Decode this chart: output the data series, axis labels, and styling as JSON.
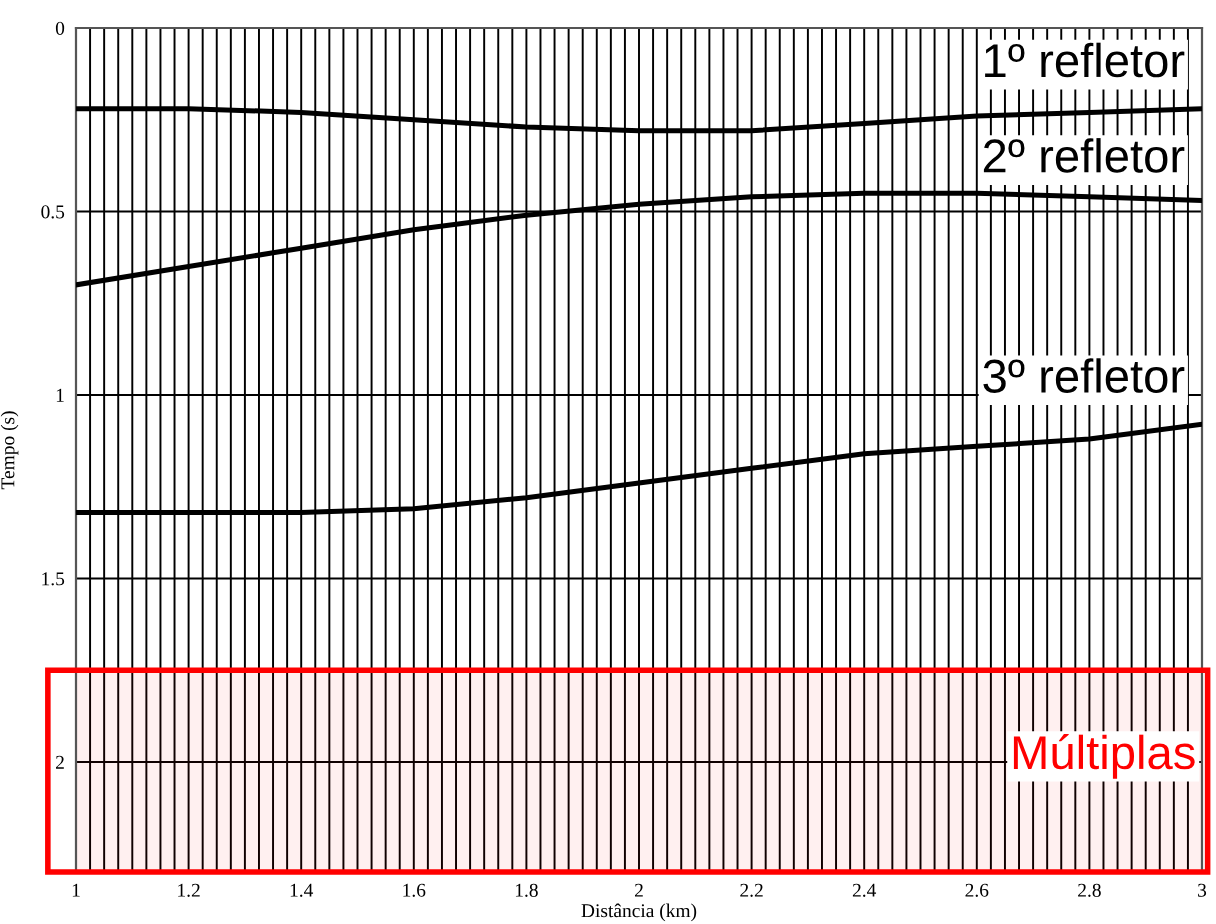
{
  "chart_data": {
    "type": "line",
    "xlabel": "Distância (km)",
    "ylabel": "Tempo (s)",
    "series": [
      {
        "color": "#000000",
        "x": [
          1.0,
          1.2,
          1.4,
          1.6,
          1.8,
          2.0,
          2.2,
          2.4,
          2.6,
          2.8,
          3.0
        ],
        "values": [
          0.22,
          0.22,
          0.23,
          0.25,
          0.27,
          0.28,
          0.28,
          0.26,
          0.24,
          0.23,
          0.22
        ]
      },
      {
        "color": "#000000",
        "x": [
          1.0,
          1.2,
          1.4,
          1.6,
          1.8,
          2.0,
          2.2,
          2.4,
          2.6,
          2.8,
          3.0
        ],
        "values": [
          0.7,
          0.65,
          0.6,
          0.55,
          0.51,
          0.48,
          0.46,
          0.45,
          0.45,
          0.46,
          0.47
        ]
      },
      {
        "color": "#000000",
        "x": [
          1.0,
          1.2,
          1.4,
          1.6,
          1.8,
          2.0,
          2.2,
          2.4,
          2.6,
          2.8,
          3.0
        ],
        "values": [
          1.32,
          1.32,
          1.32,
          1.31,
          1.28,
          1.24,
          1.2,
          1.16,
          1.14,
          1.12,
          1.08
        ]
      }
    ],
    "annotations": [
      "1º refletor",
      "2º refletor",
      "3º refletor"
    ],
    "bands": [
      {
        "axis": "y",
        "from": 1.75,
        "to": 2.3,
        "label": "Múltiplas",
        "color": "#ff0000"
      }
    ],
    "xlim": [
      1,
      3
    ],
    "ylim": [
      2.3,
      0
    ],
    "xticks": [
      1,
      {
        "value": 1.025,
        "label": null
      },
      {
        "value": 1.05,
        "label": null
      },
      {
        "value": 1.075,
        "label": null
      },
      {
        "value": 1.1,
        "label": null
      },
      {
        "value": 1.125,
        "label": null
      },
      {
        "value": 1.15,
        "label": null
      },
      {
        "value": 1.175,
        "label": null
      },
      1.2,
      {
        "value": 1.225,
        "label": null
      },
      {
        "value": 1.25,
        "label": null
      },
      {
        "value": 1.275,
        "label": null
      },
      {
        "value": 1.3,
        "label": null
      },
      {
        "value": 1.325,
        "label": null
      },
      {
        "value": 1.35,
        "label": null
      },
      {
        "value": 1.375,
        "label": null
      },
      1.4,
      {
        "value": 1.425,
        "label": null
      },
      {
        "value": 1.45,
        "label": null
      },
      {
        "value": 1.475,
        "label": null
      },
      {
        "value": 1.5,
        "label": null
      },
      {
        "value": 1.525,
        "label": null
      },
      {
        "value": 1.55,
        "label": null
      },
      {
        "value": 1.575,
        "label": null
      },
      1.6,
      {
        "value": 1.625,
        "label": null
      },
      {
        "value": 1.65,
        "label": null
      },
      {
        "value": 1.675,
        "label": null
      },
      {
        "value": 1.7,
        "label": null
      },
      {
        "value": 1.725,
        "label": null
      },
      {
        "value": 1.75,
        "label": null
      },
      {
        "value": 1.775,
        "label": null
      },
      1.8,
      {
        "value": 1.825,
        "label": null
      },
      {
        "value": 1.85,
        "label": null
      },
      {
        "value": 1.875,
        "label": null
      },
      {
        "value": 1.9,
        "label": null
      },
      {
        "value": 1.925,
        "label": null
      },
      {
        "value": 1.95,
        "label": null
      },
      {
        "value": 1.975,
        "label": null
      },
      2,
      {
        "value": 2.025,
        "label": null
      },
      {
        "value": 2.05,
        "label": null
      },
      {
        "value": 2.075,
        "label": null
      },
      {
        "value": 2.1,
        "label": null
      },
      {
        "value": 2.125,
        "label": null
      },
      {
        "value": 2.15,
        "label": null
      },
      {
        "value": 2.175,
        "label": null
      },
      2.2,
      {
        "value": 2.225,
        "label": null
      },
      {
        "value": 2.25,
        "label": null
      },
      {
        "value": 2.275,
        "label": null
      },
      {
        "value": 2.3,
        "label": null
      },
      {
        "value": 2.325,
        "label": null
      },
      {
        "value": 2.35,
        "label": null
      },
      {
        "value": 2.375,
        "label": null
      },
      2.4,
      {
        "value": 2.425,
        "label": null
      },
      {
        "value": 2.45,
        "label": null
      },
      {
        "value": 2.475,
        "label": null
      },
      {
        "value": 2.5,
        "label": null
      },
      {
        "value": 2.525,
        "label": null
      },
      {
        "value": 2.55,
        "label": null
      },
      {
        "value": 2.575,
        "label": null
      },
      2.6,
      {
        "value": 2.625,
        "label": null
      },
      {
        "value": 2.65,
        "label": null
      },
      {
        "value": 2.675,
        "label": null
      },
      {
        "value": 2.7,
        "label": null
      },
      {
        "value": 2.725,
        "label": null
      },
      {
        "value": 2.75,
        "label": null
      },
      {
        "value": 2.775,
        "label": null
      },
      2.8,
      {
        "value": 2.825,
        "label": null
      },
      {
        "value": 2.85,
        "label": null
      },
      {
        "value": 2.875,
        "label": null
      },
      {
        "value": 2.9,
        "label": null
      },
      {
        "value": 2.925,
        "label": null
      },
      {
        "value": 2.95,
        "label": null
      },
      {
        "value": 2.975,
        "label": null
      },
      3
    ],
    "yticks": [
      0,
      0.5,
      1,
      1.5,
      2
    ],
    "grid": true,
    "line_style": "solid"
  }
}
